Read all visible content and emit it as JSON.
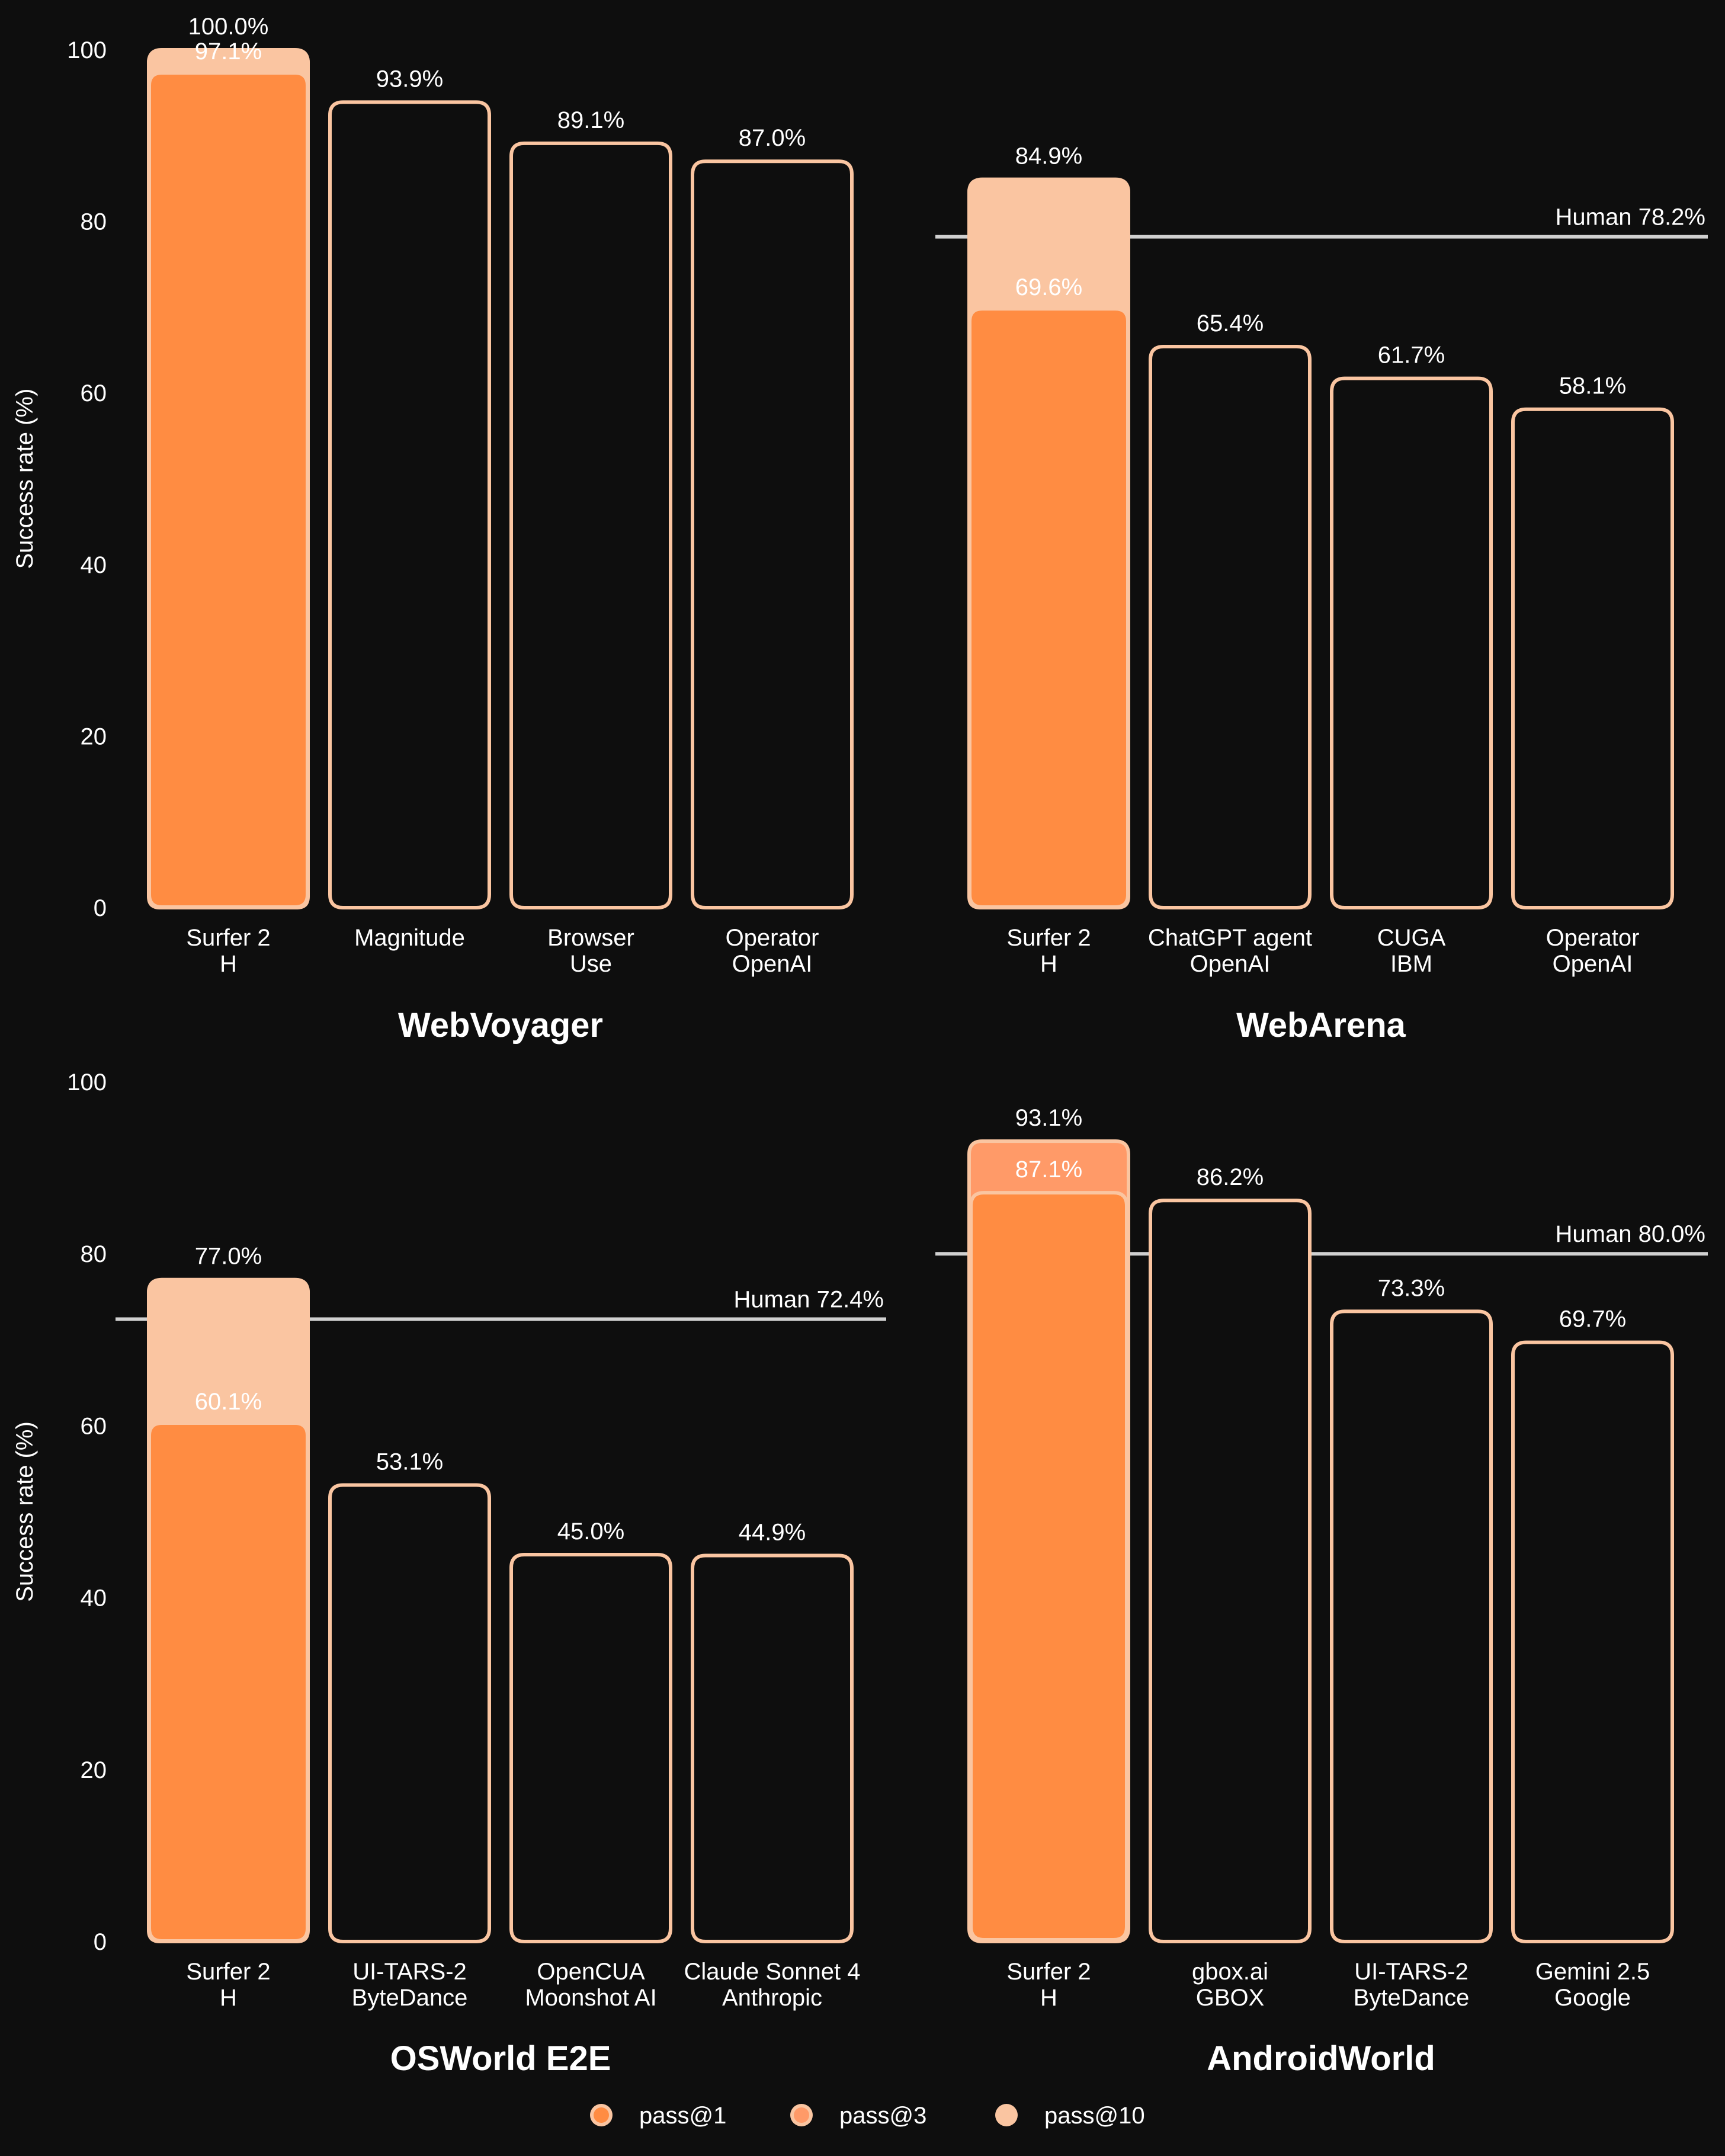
{
  "chart_data": [
    {
      "type": "bar",
      "title": "WebVoyager",
      "ylabel": "Success rate (%)",
      "ylim": [
        0,
        100
      ],
      "yticks": [
        0,
        20,
        40,
        60,
        80,
        100
      ],
      "categories": [
        [
          "Surfer 2",
          "H"
        ],
        [
          "Magnitude"
        ],
        [
          "Browser",
          "Use"
        ],
        [
          "Operator",
          "OpenAI"
        ]
      ],
      "series": [
        {
          "name": "pass@1",
          "values": [
            97.1,
            93.9,
            89.1,
            87.0
          ],
          "labels": [
            "97.1%",
            "93.9%",
            "89.1%",
            "87.0%"
          ]
        },
        {
          "name": "pass@3",
          "values": [
            null,
            null,
            null,
            null
          ],
          "labels": [
            null,
            null,
            null,
            null
          ]
        },
        {
          "name": "pass@10",
          "values": [
            100.0,
            null,
            null,
            null
          ],
          "labels": [
            "100.0%",
            null,
            null,
            null
          ]
        }
      ],
      "highlight_index": 0,
      "human_baseline": null
    },
    {
      "type": "bar",
      "title": "WebArena",
      "ylabel": "",
      "ylim": [
        0,
        100
      ],
      "yticks": [],
      "categories": [
        [
          "Surfer 2",
          "H"
        ],
        [
          "ChatGPT agent",
          "OpenAI"
        ],
        [
          "CUGA",
          "IBM"
        ],
        [
          "Operator",
          "OpenAI"
        ]
      ],
      "series": [
        {
          "name": "pass@1",
          "values": [
            69.6,
            65.4,
            61.7,
            58.1
          ],
          "labels": [
            "69.6%",
            "65.4%",
            "61.7%",
            "58.1%"
          ]
        },
        {
          "name": "pass@3",
          "values": [
            null,
            null,
            null,
            null
          ],
          "labels": [
            null,
            null,
            null,
            null
          ]
        },
        {
          "name": "pass@10",
          "values": [
            84.9,
            null,
            null,
            null
          ],
          "labels": [
            "84.9%",
            null,
            null,
            null
          ]
        }
      ],
      "highlight_index": 0,
      "human_baseline": {
        "value": 78.2,
        "label": "Human 78.2%"
      }
    },
    {
      "type": "bar",
      "title": "OSWorld E2E",
      "ylabel": "Success rate (%)",
      "ylim": [
        0,
        100
      ],
      "yticks": [
        0,
        20,
        40,
        60,
        80,
        100
      ],
      "categories": [
        [
          "Surfer 2",
          "H"
        ],
        [
          "UI-TARS-2",
          "ByteDance"
        ],
        [
          "OpenCUA",
          "Moonshot AI"
        ],
        [
          "Claude Sonnet 4",
          "Anthropic"
        ]
      ],
      "series": [
        {
          "name": "pass@1",
          "values": [
            60.1,
            53.1,
            45.0,
            44.9
          ],
          "labels": [
            "60.1%",
            "53.1%",
            "45.0%",
            "44.9%"
          ]
        },
        {
          "name": "pass@3",
          "values": [
            null,
            null,
            null,
            null
          ],
          "labels": [
            null,
            null,
            null,
            null
          ]
        },
        {
          "name": "pass@10",
          "values": [
            77.0,
            null,
            null,
            null
          ],
          "labels": [
            "77.0%",
            null,
            null,
            null
          ]
        }
      ],
      "highlight_index": 0,
      "human_baseline": {
        "value": 72.4,
        "label": "Human 72.4%"
      }
    },
    {
      "type": "bar",
      "title": "AndroidWorld",
      "ylabel": "",
      "ylim": [
        0,
        100
      ],
      "yticks": [],
      "categories": [
        [
          "Surfer 2",
          "H"
        ],
        [
          "gbox.ai",
          "GBOX"
        ],
        [
          "UI-TARS-2",
          "ByteDance"
        ],
        [
          "Gemini 2.5",
          "Google"
        ]
      ],
      "series": [
        {
          "name": "pass@1",
          "values": [
            87.1,
            86.2,
            73.3,
            69.7
          ],
          "labels": [
            "87.1%",
            "86.2%",
            "73.3%",
            "69.7%"
          ]
        },
        {
          "name": "pass@3",
          "values": [
            93.1,
            null,
            null,
            null
          ],
          "labels": [
            "93.1%",
            null,
            null,
            null
          ]
        },
        {
          "name": "pass@10",
          "values": [
            null,
            null,
            null,
            null
          ],
          "labels": [
            null,
            null,
            null,
            null
          ]
        }
      ],
      "highlight_index": 0,
      "human_baseline": {
        "value": 80.0,
        "label": "Human 80.0%"
      }
    }
  ],
  "legend": {
    "position": "bottom-center",
    "items": [
      {
        "label": "pass@1",
        "color": "#FF8C42"
      },
      {
        "label": "pass@3",
        "color": "#FF9A68"
      },
      {
        "label": "pass@10",
        "color": "#FAC5A1"
      }
    ]
  },
  "colors": {
    "background": "#0E0E0E",
    "pass1": "#FF8C42",
    "pass3": "#FF9A68",
    "pass10": "#FAC5A1",
    "outline": "#FAC5A1",
    "human_line": "#D0D0D0",
    "text": "#FFFFFF"
  }
}
